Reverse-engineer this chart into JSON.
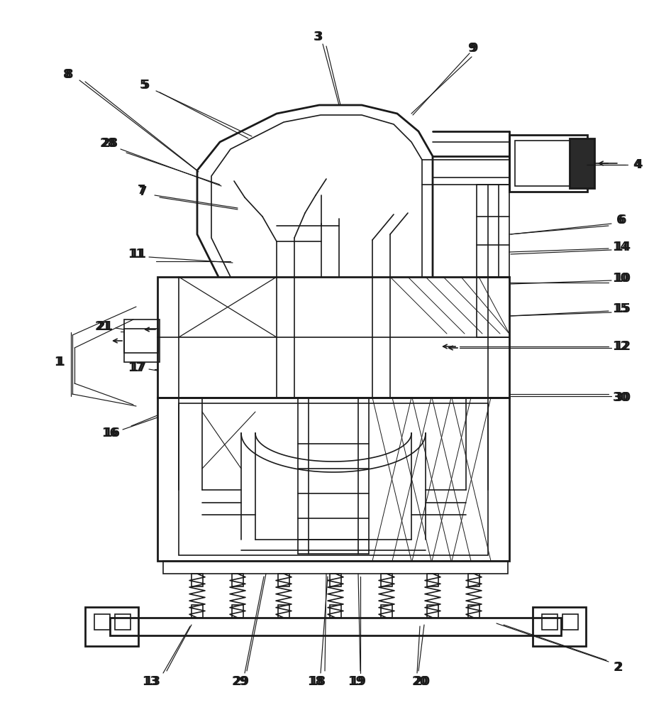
{
  "bg_color": "#ffffff",
  "line_color": "#1a1a1a",
  "lw": 1.2,
  "tlw": 2.0,
  "fig_w": 9.46,
  "fig_h": 10.0
}
